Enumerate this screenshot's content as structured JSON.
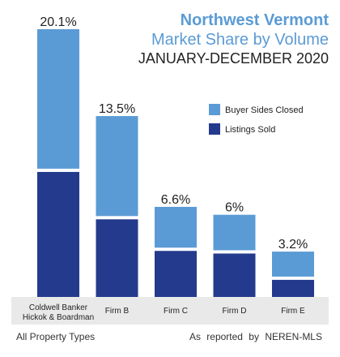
{
  "header": {
    "title_line1": "Northwest Vermont",
    "title_line2": "Market Share by Volume",
    "subtitle": "JANUARY-DECEMBER 2020"
  },
  "footer": {
    "left": "All Property Types",
    "right": "As reported by NEREN-MLS"
  },
  "chart_data": {
    "type": "bar",
    "stacked": true,
    "categories": [
      "Coldwell Banker\nHickok & Boardman",
      "Firm B",
      "Firm C",
      "Firm D",
      "Firm E"
    ],
    "totals_labels": [
      "20.1%",
      "13.5%",
      "6.6%",
      "6%",
      "3.2%"
    ],
    "totals": [
      20.1,
      13.5,
      6.6,
      6.0,
      3.2
    ],
    "series": [
      {
        "name": "Listings Sold",
        "color": "#243a8c",
        "values": [
          9.5,
          5.9,
          3.5,
          3.3,
          1.3
        ]
      },
      {
        "name": "Buyer Sides Closed",
        "color": "#5b9bd5",
        "values": [
          10.6,
          7.6,
          3.1,
          2.7,
          1.9
        ]
      }
    ],
    "legend": {
      "position": "top-right",
      "order": [
        "Buyer Sides Closed",
        "Listings Sold"
      ]
    },
    "ylim": [
      0,
      20.1
    ],
    "grid": false,
    "xlabel": "",
    "ylabel": ""
  }
}
